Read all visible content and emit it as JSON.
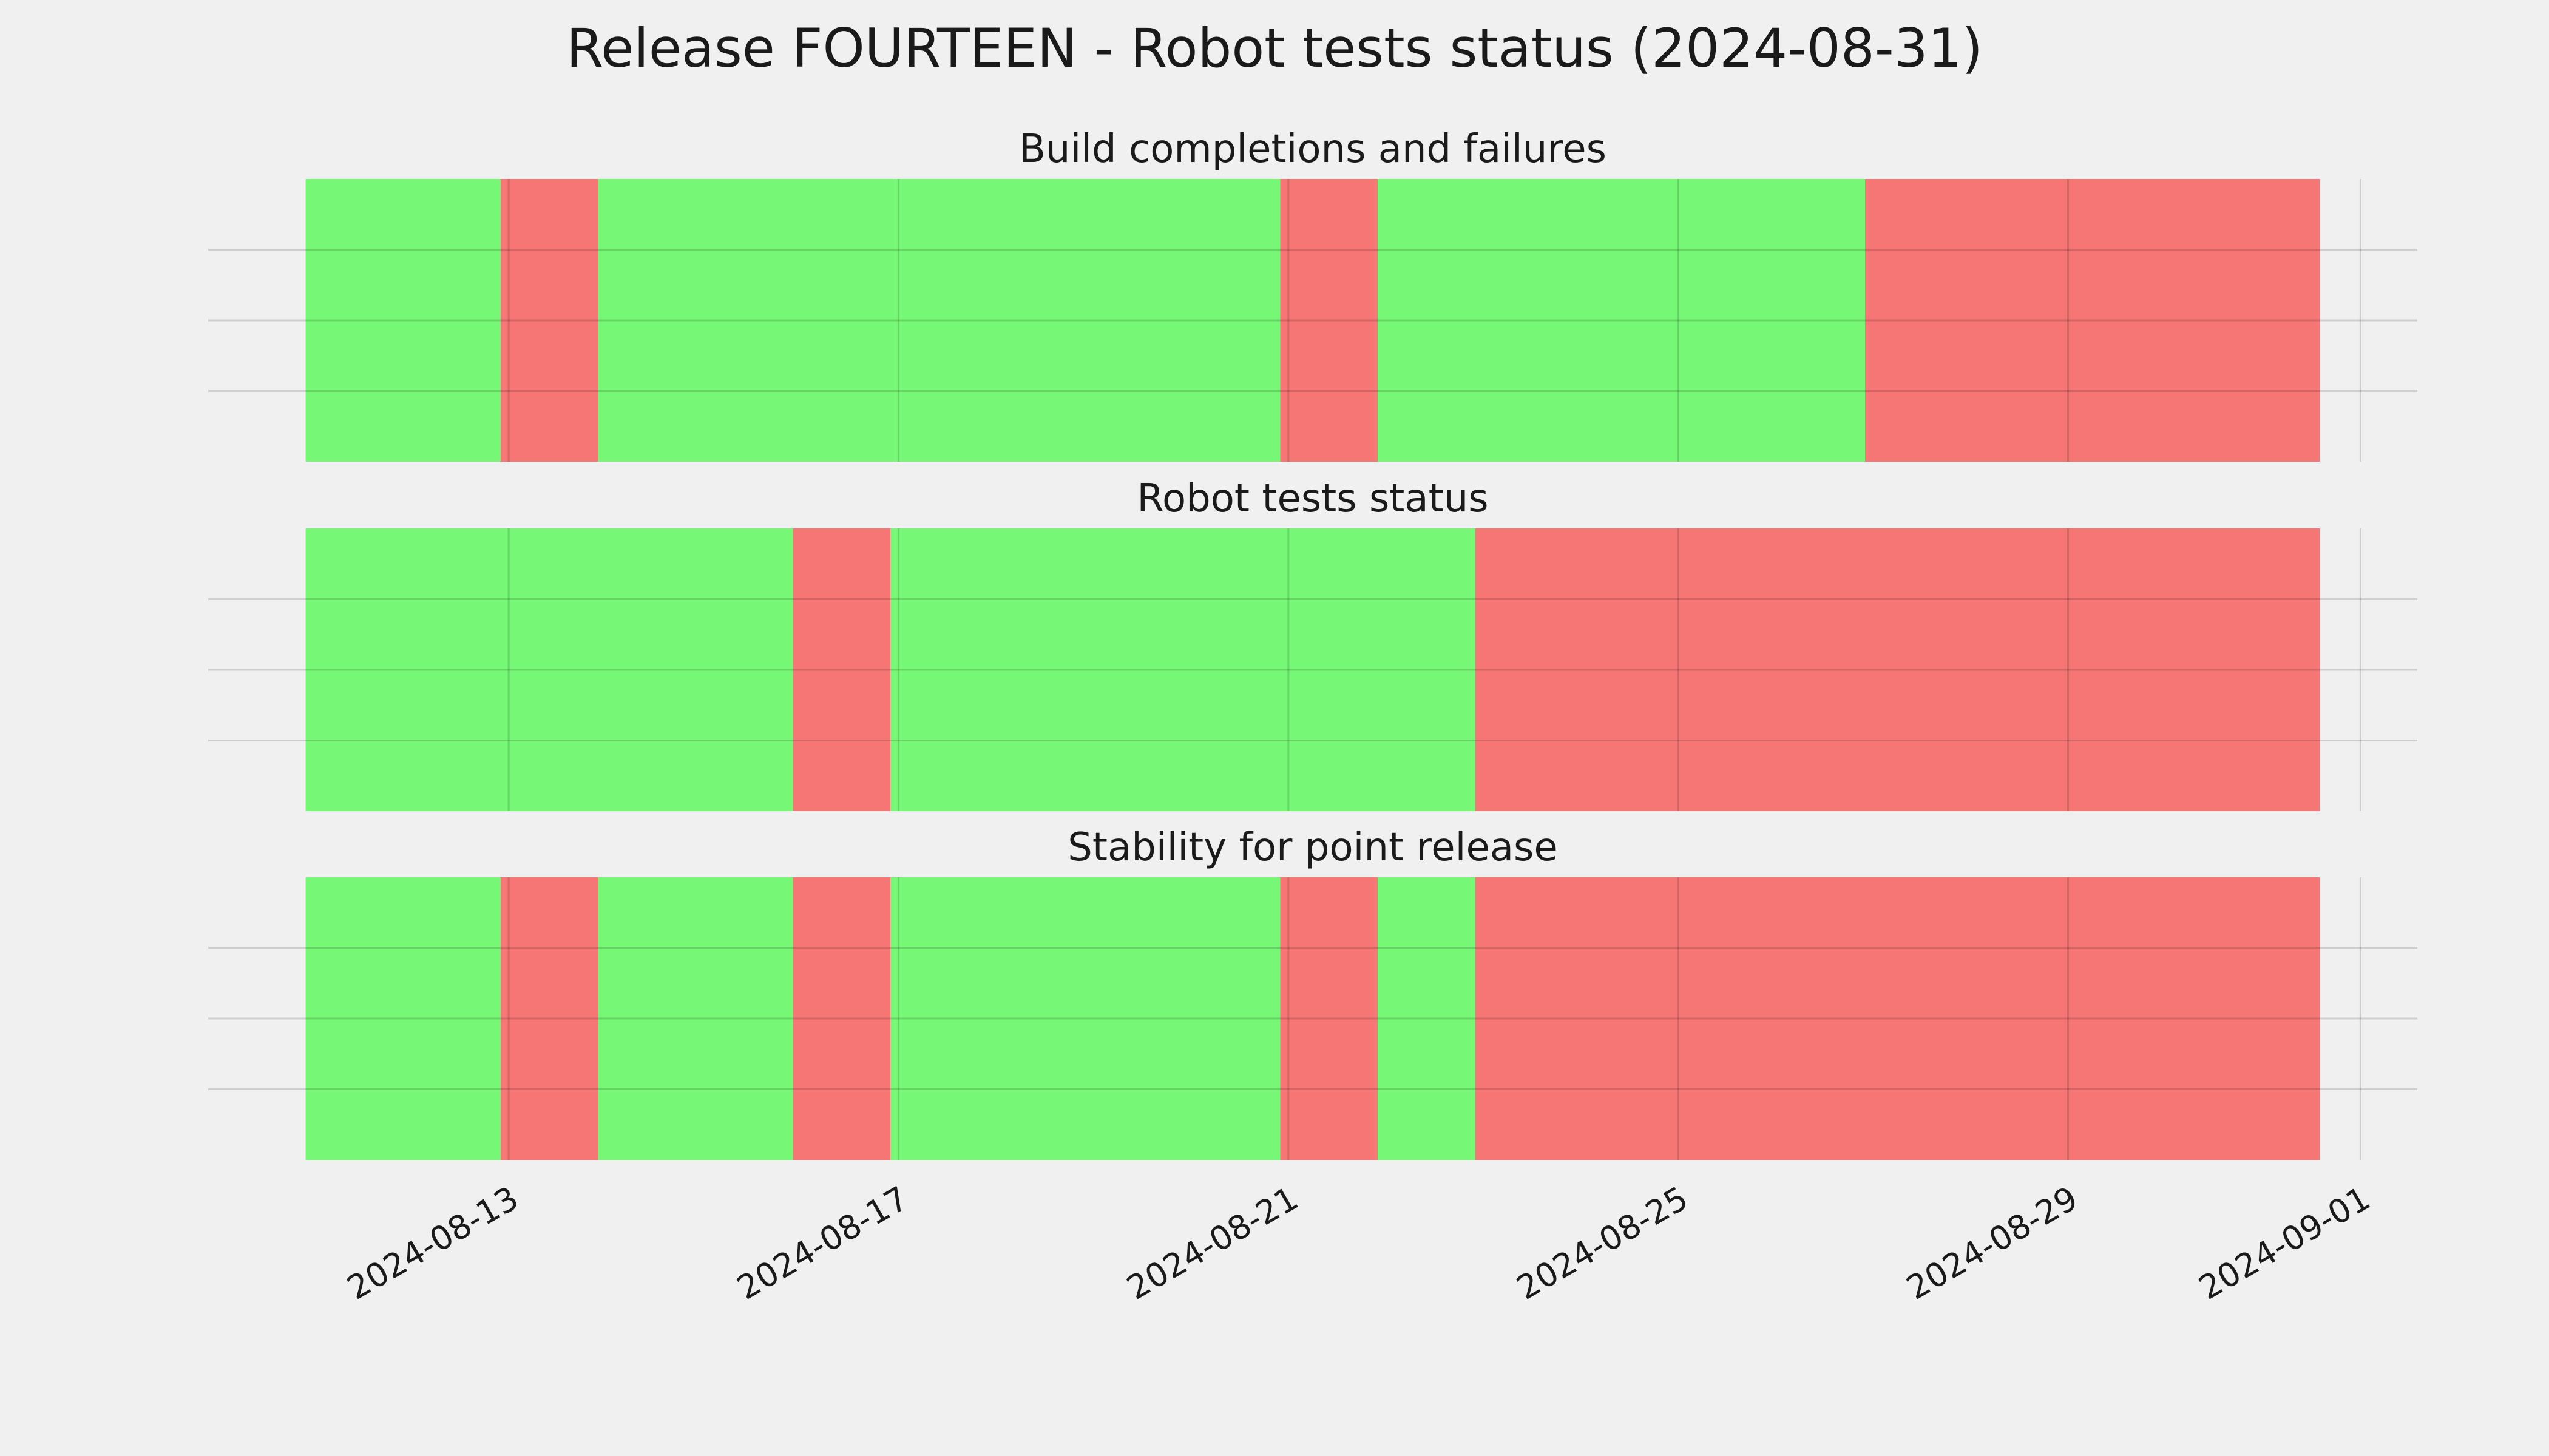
{
  "title": "Release FOURTEEN - Robot tests status (2024-08-31)",
  "chart_data": [
    {
      "type": "timeline",
      "title": "Build completions and failures",
      "xlim": [
        "2024-08-09T22:00",
        "2024-09-01T14:00"
      ],
      "ylim": [
        0,
        1
      ],
      "xticks": [
        "2024-08-13",
        "2024-08-17",
        "2024-08-21",
        "2024-08-25",
        "2024-08-29",
        "2024-09-01"
      ],
      "yticks": [
        0.25,
        0.5,
        0.75
      ],
      "grid": true,
      "segments": [
        {
          "start": "2024-08-10T22:00",
          "end": "2024-08-12T22:00",
          "color": "#76f776"
        },
        {
          "start": "2024-08-12T22:00",
          "end": "2024-08-13T22:00",
          "color": "#f67676"
        },
        {
          "start": "2024-08-13T22:00",
          "end": "2024-08-20T22:00",
          "color": "#76f776"
        },
        {
          "start": "2024-08-20T22:00",
          "end": "2024-08-21T22:00",
          "color": "#f67676"
        },
        {
          "start": "2024-08-21T22:00",
          "end": "2024-08-26T22:00",
          "color": "#76f776"
        },
        {
          "start": "2024-08-26T22:00",
          "end": "2024-08-31T14:00",
          "color": "#f67676"
        }
      ]
    },
    {
      "type": "timeline",
      "title": "Robot tests status",
      "xlim": [
        "2024-08-09T22:00",
        "2024-09-01T14:00"
      ],
      "ylim": [
        0,
        1
      ],
      "xticks": [
        "2024-08-13",
        "2024-08-17",
        "2024-08-21",
        "2024-08-25",
        "2024-08-29",
        "2024-09-01"
      ],
      "yticks": [
        0.25,
        0.5,
        0.75
      ],
      "grid": true,
      "segments": [
        {
          "start": "2024-08-10T22:00",
          "end": "2024-08-15T22:00",
          "color": "#76f776"
        },
        {
          "start": "2024-08-15T22:00",
          "end": "2024-08-16T22:00",
          "color": "#f67676"
        },
        {
          "start": "2024-08-16T22:00",
          "end": "2024-08-22T22:00",
          "color": "#76f776"
        },
        {
          "start": "2024-08-22T22:00",
          "end": "2024-08-31T14:00",
          "color": "#f67676"
        }
      ]
    },
    {
      "type": "timeline",
      "title": "Stability for point release",
      "xlim": [
        "2024-08-09T22:00",
        "2024-09-01T14:00"
      ],
      "ylim": [
        0,
        1
      ],
      "xticks": [
        "2024-08-13",
        "2024-08-17",
        "2024-08-21",
        "2024-08-25",
        "2024-08-29",
        "2024-09-01"
      ],
      "yticks": [
        0.25,
        0.5,
        0.75
      ],
      "grid": true,
      "segments": [
        {
          "start": "2024-08-10T22:00",
          "end": "2024-08-12T22:00",
          "color": "#76f776"
        },
        {
          "start": "2024-08-12T22:00",
          "end": "2024-08-13T22:00",
          "color": "#f67676"
        },
        {
          "start": "2024-08-13T22:00",
          "end": "2024-08-15T22:00",
          "color": "#76f776"
        },
        {
          "start": "2024-08-15T22:00",
          "end": "2024-08-16T22:00",
          "color": "#f67676"
        },
        {
          "start": "2024-08-16T22:00",
          "end": "2024-08-20T22:00",
          "color": "#76f776"
        },
        {
          "start": "2024-08-20T22:00",
          "end": "2024-08-21T22:00",
          "color": "#f67676"
        },
        {
          "start": "2024-08-21T22:00",
          "end": "2024-08-22T22:00",
          "color": "#76f776"
        },
        {
          "start": "2024-08-22T22:00",
          "end": "2024-08-31T14:00",
          "color": "#f67676"
        }
      ]
    }
  ]
}
